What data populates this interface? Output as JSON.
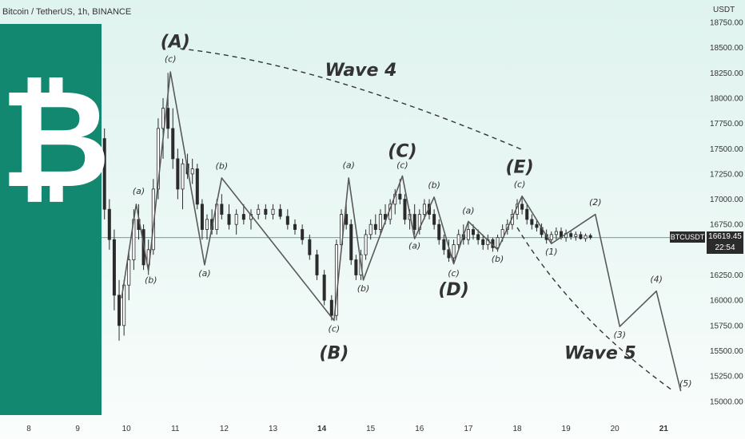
{
  "header": {
    "symbol_title": "Bitcoin / TetherUS, 1h, BINANCE",
    "unit": "USDT"
  },
  "logo": {
    "glyph": "₿",
    "icon": "bitcoin-logo"
  },
  "colors": {
    "panel": "#138870",
    "line": "#5a5a5a",
    "candle": "#2b2b2b",
    "label": "#333333",
    "hline": "#2f8a73"
  },
  "price_tag": {
    "symbol": "BTCUSDT",
    "price": "16619.45",
    "countdown": "22:54"
  },
  "chart_data": {
    "type": "line",
    "title": "",
    "xlabel": "",
    "ylabel": "",
    "ylim": [
      14900,
      18800
    ],
    "grid": false,
    "x_ticks": [
      "8",
      "9",
      "10",
      "11",
      "12",
      "13",
      "14",
      "15",
      "16",
      "17",
      "18",
      "19",
      "20",
      "21"
    ],
    "y_ticks": [
      "18750.00",
      "18500.00",
      "18250.00",
      "18000.00",
      "17750.00",
      "17500.00",
      "17250.00",
      "17000.00",
      "16750.00",
      "16250.00",
      "16000.00",
      "15750.00",
      "15500.00",
      "15250.00",
      "15000.00"
    ],
    "current_price": 16619.45,
    "wave_path": [
      {
        "day": 9.9,
        "y": 16020
      },
      {
        "day": 10.2,
        "y": 16950
      },
      {
        "day": 10.45,
        "y": 16290
      },
      {
        "day": 10.9,
        "y": 18260
      },
      {
        "day": 11.6,
        "y": 16350
      },
      {
        "day": 11.95,
        "y": 17210
      },
      {
        "day": 14.25,
        "y": 15800
      },
      {
        "day": 14.55,
        "y": 17210
      },
      {
        "day": 14.85,
        "y": 16200
      },
      {
        "day": 15.65,
        "y": 17230
      },
      {
        "day": 15.9,
        "y": 16610
      },
      {
        "day": 16.3,
        "y": 17020
      },
      {
        "day": 16.7,
        "y": 16360
      },
      {
        "day": 17.0,
        "y": 16780
      },
      {
        "day": 17.6,
        "y": 16500
      },
      {
        "day": 18.1,
        "y": 17030
      },
      {
        "day": 18.7,
        "y": 16560
      },
      {
        "day": 19.6,
        "y": 16850
      },
      {
        "day": 20.1,
        "y": 15740
      },
      {
        "day": 20.85,
        "y": 16090
      },
      {
        "day": 21.35,
        "y": 15100
      }
    ],
    "wave4_curve": [
      {
        "day": 11.1,
        "y": 18490
      },
      {
        "day": 18.15,
        "y": 17480
      }
    ],
    "wave5_curve": [
      {
        "day": 18.0,
        "y": 16720
      },
      {
        "day": 21.2,
        "y": 15100
      }
    ],
    "labels": [
      {
        "text": "(A)",
        "day": 11.0,
        "y": 18500,
        "size": "big"
      },
      {
        "text": "(c)",
        "day": 10.9,
        "y": 18360,
        "size": "small"
      },
      {
        "text": "(a)",
        "day": 10.25,
        "y": 17050,
        "size": "small"
      },
      {
        "text": "(b)",
        "day": 10.5,
        "y": 16170,
        "size": "small"
      },
      {
        "text": "(b)",
        "day": 11.95,
        "y": 17300,
        "size": "small"
      },
      {
        "text": "(a)",
        "day": 11.6,
        "y": 16240,
        "size": "small"
      },
      {
        "text": "(c)",
        "day": 14.25,
        "y": 15690,
        "size": "small"
      },
      {
        "text": "(B)",
        "day": 14.25,
        "y": 15420,
        "size": "big"
      },
      {
        "text": "(a)",
        "day": 14.55,
        "y": 17310,
        "size": "small"
      },
      {
        "text": "(b)",
        "day": 14.85,
        "y": 16090,
        "size": "small"
      },
      {
        "text": "(C)",
        "day": 15.65,
        "y": 17420,
        "size": "big"
      },
      {
        "text": "(c)",
        "day": 15.65,
        "y": 17310,
        "size": "small"
      },
      {
        "text": "(a)",
        "day": 15.9,
        "y": 16510,
        "size": "small"
      },
      {
        "text": "(b)",
        "day": 16.3,
        "y": 17110,
        "size": "small"
      },
      {
        "text": "(c)",
        "day": 16.7,
        "y": 16240,
        "size": "small"
      },
      {
        "text": "(D)",
        "day": 16.7,
        "y": 16050,
        "size": "big"
      },
      {
        "text": "(a)",
        "day": 17.0,
        "y": 16860,
        "size": "small"
      },
      {
        "text": "(b)",
        "day": 17.6,
        "y": 16380,
        "size": "small"
      },
      {
        "text": "(E)",
        "day": 18.05,
        "y": 17260,
        "size": "big"
      },
      {
        "text": "(c)",
        "day": 18.05,
        "y": 17120,
        "size": "small"
      },
      {
        "text": "(1)",
        "day": 18.7,
        "y": 16450,
        "size": "small"
      },
      {
        "text": "(2)",
        "day": 19.6,
        "y": 16940,
        "size": "small"
      },
      {
        "text": "(3)",
        "day": 20.1,
        "y": 15630,
        "size": "small"
      },
      {
        "text": "(4)",
        "day": 20.85,
        "y": 16180,
        "size": "small"
      },
      {
        "text": "(5)",
        "day": 21.45,
        "y": 15150,
        "size": "small"
      },
      {
        "text": "Wave 4",
        "day": 14.8,
        "y": 18220,
        "size": "wave"
      },
      {
        "text": "Wave 5",
        "day": 19.7,
        "y": 15420,
        "size": "wave"
      }
    ],
    "candles": [
      {
        "day": 9.45,
        "o": 17700,
        "h": 17850,
        "l": 17500,
        "c": 17600
      },
      {
        "day": 9.55,
        "o": 17600,
        "h": 17700,
        "l": 16800,
        "c": 16900
      },
      {
        "day": 9.65,
        "o": 16900,
        "h": 17000,
        "l": 16500,
        "c": 16600
      },
      {
        "day": 9.75,
        "o": 16600,
        "h": 16700,
        "l": 15900,
        "c": 16050
      },
      {
        "day": 9.85,
        "o": 16050,
        "h": 16200,
        "l": 15600,
        "c": 15750
      },
      {
        "day": 9.95,
        "o": 15750,
        "h": 16200,
        "l": 15650,
        "c": 16150
      },
      {
        "day": 10.05,
        "o": 16150,
        "h": 16500,
        "l": 16000,
        "c": 16400
      },
      {
        "day": 10.15,
        "o": 16400,
        "h": 16900,
        "l": 16300,
        "c": 16800
      },
      {
        "day": 10.25,
        "o": 16800,
        "h": 16950,
        "l": 16600,
        "c": 16700
      },
      {
        "day": 10.35,
        "o": 16700,
        "h": 16750,
        "l": 16300,
        "c": 16350
      },
      {
        "day": 10.45,
        "o": 16350,
        "h": 16600,
        "l": 16250,
        "c": 16500
      },
      {
        "day": 10.55,
        "o": 16500,
        "h": 17200,
        "l": 16450,
        "c": 17100
      },
      {
        "day": 10.65,
        "o": 17100,
        "h": 17800,
        "l": 17000,
        "c": 17700
      },
      {
        "day": 10.75,
        "o": 17700,
        "h": 18000,
        "l": 17400,
        "c": 17900
      },
      {
        "day": 10.85,
        "o": 17900,
        "h": 18250,
        "l": 17600,
        "c": 17700
      },
      {
        "day": 10.95,
        "o": 17700,
        "h": 17900,
        "l": 17300,
        "c": 17400
      },
      {
        "day": 11.05,
        "o": 17400,
        "h": 17500,
        "l": 17000,
        "c": 17100
      },
      {
        "day": 11.15,
        "o": 17100,
        "h": 17400,
        "l": 16900,
        "c": 17350
      },
      {
        "day": 11.25,
        "o": 17350,
        "h": 17450,
        "l": 17200,
        "c": 17250
      },
      {
        "day": 11.35,
        "o": 17250,
        "h": 17400,
        "l": 17150,
        "c": 17300
      },
      {
        "day": 11.45,
        "o": 17300,
        "h": 17350,
        "l": 16900,
        "c": 16950
      },
      {
        "day": 11.55,
        "o": 16950,
        "h": 17000,
        "l": 16600,
        "c": 16700
      },
      {
        "day": 11.65,
        "o": 16700,
        "h": 16850,
        "l": 16600,
        "c": 16800
      },
      {
        "day": 11.75,
        "o": 16800,
        "h": 16900,
        "l": 16650,
        "c": 16700
      },
      {
        "day": 11.85,
        "o": 16700,
        "h": 17000,
        "l": 16650,
        "c": 16950
      },
      {
        "day": 11.95,
        "o": 16950,
        "h": 17050,
        "l": 16800,
        "c": 16850
      },
      {
        "day": 12.1,
        "o": 16850,
        "h": 16950,
        "l": 16700,
        "c": 16750
      },
      {
        "day": 12.25,
        "o": 16750,
        "h": 16900,
        "l": 16650,
        "c": 16850
      },
      {
        "day": 12.4,
        "o": 16850,
        "h": 16950,
        "l": 16750,
        "c": 16800
      },
      {
        "day": 12.55,
        "o": 16800,
        "h": 16900,
        "l": 16700,
        "c": 16850
      },
      {
        "day": 12.7,
        "o": 16850,
        "h": 16950,
        "l": 16800,
        "c": 16900
      },
      {
        "day": 12.85,
        "o": 16900,
        "h": 16950,
        "l": 16800,
        "c": 16850
      },
      {
        "day": 13.0,
        "o": 16850,
        "h": 16950,
        "l": 16800,
        "c": 16900
      },
      {
        "day": 13.15,
        "o": 16900,
        "h": 16950,
        "l": 16800,
        "c": 16830
      },
      {
        "day": 13.3,
        "o": 16830,
        "h": 16900,
        "l": 16700,
        "c": 16750
      },
      {
        "day": 13.45,
        "o": 16750,
        "h": 16800,
        "l": 16650,
        "c": 16700
      },
      {
        "day": 13.6,
        "o": 16700,
        "h": 16750,
        "l": 16550,
        "c": 16600
      },
      {
        "day": 13.75,
        "o": 16600,
        "h": 16650,
        "l": 16400,
        "c": 16450
      },
      {
        "day": 13.9,
        "o": 16450,
        "h": 16500,
        "l": 16200,
        "c": 16250
      },
      {
        "day": 14.05,
        "o": 16250,
        "h": 16300,
        "l": 15950,
        "c": 16000
      },
      {
        "day": 14.2,
        "o": 16000,
        "h": 16050,
        "l": 15800,
        "c": 15850
      },
      {
        "day": 14.3,
        "o": 15850,
        "h": 16600,
        "l": 15800,
        "c": 16550
      },
      {
        "day": 14.4,
        "o": 16550,
        "h": 16900,
        "l": 16500,
        "c": 16850
      },
      {
        "day": 14.5,
        "o": 16850,
        "h": 16950,
        "l": 16700,
        "c": 16750
      },
      {
        "day": 14.6,
        "o": 16750,
        "h": 16800,
        "l": 16350,
        "c": 16400
      },
      {
        "day": 14.7,
        "o": 16400,
        "h": 16450,
        "l": 16200,
        "c": 16250
      },
      {
        "day": 14.8,
        "o": 16250,
        "h": 16500,
        "l": 16200,
        "c": 16450
      },
      {
        "day": 14.9,
        "o": 16450,
        "h": 16700,
        "l": 16400,
        "c": 16650
      },
      {
        "day": 15.0,
        "o": 16650,
        "h": 16800,
        "l": 16600,
        "c": 16750
      },
      {
        "day": 15.1,
        "o": 16750,
        "h": 16850,
        "l": 16650,
        "c": 16700
      },
      {
        "day": 15.2,
        "o": 16700,
        "h": 16900,
        "l": 16650,
        "c": 16850
      },
      {
        "day": 15.3,
        "o": 16850,
        "h": 16950,
        "l": 16750,
        "c": 16800
      },
      {
        "day": 15.4,
        "o": 16800,
        "h": 17000,
        "l": 16750,
        "c": 16950
      },
      {
        "day": 15.5,
        "o": 16950,
        "h": 17100,
        "l": 16850,
        "c": 17050
      },
      {
        "day": 15.6,
        "o": 17050,
        "h": 17200,
        "l": 16950,
        "c": 17000
      },
      {
        "day": 15.7,
        "o": 17000,
        "h": 17050,
        "l": 16750,
        "c": 16800
      },
      {
        "day": 15.8,
        "o": 16800,
        "h": 16900,
        "l": 16700,
        "c": 16850
      },
      {
        "day": 15.9,
        "o": 16850,
        "h": 16950,
        "l": 16650,
        "c": 16700
      },
      {
        "day": 16.0,
        "o": 16700,
        "h": 16900,
        "l": 16650,
        "c": 16850
      },
      {
        "day": 16.1,
        "o": 16850,
        "h": 17000,
        "l": 16800,
        "c": 16950
      },
      {
        "day": 16.2,
        "o": 16950,
        "h": 17000,
        "l": 16800,
        "c": 16850
      },
      {
        "day": 16.3,
        "o": 16850,
        "h": 16900,
        "l": 16700,
        "c": 16750
      },
      {
        "day": 16.4,
        "o": 16750,
        "h": 16800,
        "l": 16550,
        "c": 16600
      },
      {
        "day": 16.5,
        "o": 16600,
        "h": 16650,
        "l": 16450,
        "c": 16500
      },
      {
        "day": 16.6,
        "o": 16500,
        "h": 16600,
        "l": 16380,
        "c": 16420
      },
      {
        "day": 16.7,
        "o": 16420,
        "h": 16600,
        "l": 16380,
        "c": 16550
      },
      {
        "day": 16.8,
        "o": 16550,
        "h": 16700,
        "l": 16500,
        "c": 16650
      },
      {
        "day": 16.9,
        "o": 16650,
        "h": 16750,
        "l": 16550,
        "c": 16600
      },
      {
        "day": 17.0,
        "o": 16600,
        "h": 16780,
        "l": 16550,
        "c": 16700
      },
      {
        "day": 17.1,
        "o": 16700,
        "h": 16750,
        "l": 16600,
        "c": 16650
      },
      {
        "day": 17.2,
        "o": 16650,
        "h": 16700,
        "l": 16550,
        "c": 16600
      },
      {
        "day": 17.3,
        "o": 16600,
        "h": 16650,
        "l": 16500,
        "c": 16550
      },
      {
        "day": 17.4,
        "o": 16550,
        "h": 16650,
        "l": 16500,
        "c": 16600
      },
      {
        "day": 17.5,
        "o": 16600,
        "h": 16620,
        "l": 16480,
        "c": 16520
      },
      {
        "day": 17.6,
        "o": 16520,
        "h": 16650,
        "l": 16480,
        "c": 16620
      },
      {
        "day": 17.7,
        "o": 16620,
        "h": 16750,
        "l": 16580,
        "c": 16700
      },
      {
        "day": 17.8,
        "o": 16700,
        "h": 16800,
        "l": 16650,
        "c": 16750
      },
      {
        "day": 17.9,
        "o": 16750,
        "h": 16900,
        "l": 16700,
        "c": 16850
      },
      {
        "day": 18.0,
        "o": 16850,
        "h": 17000,
        "l": 16800,
        "c": 16950
      },
      {
        "day": 18.1,
        "o": 16950,
        "h": 17030,
        "l": 16850,
        "c": 16900
      },
      {
        "day": 18.2,
        "o": 16900,
        "h": 16950,
        "l": 16750,
        "c": 16800
      },
      {
        "day": 18.3,
        "o": 16800,
        "h": 16850,
        "l": 16700,
        "c": 16750
      },
      {
        "day": 18.4,
        "o": 16750,
        "h": 16800,
        "l": 16680,
        "c": 16720
      },
      {
        "day": 18.5,
        "o": 16720,
        "h": 16760,
        "l": 16620,
        "c": 16650
      },
      {
        "day": 18.6,
        "o": 16650,
        "h": 16700,
        "l": 16560,
        "c": 16600
      },
      {
        "day": 18.7,
        "o": 16600,
        "h": 16680,
        "l": 16560,
        "c": 16650
      },
      {
        "day": 18.8,
        "o": 16650,
        "h": 16720,
        "l": 16600,
        "c": 16680
      },
      {
        "day": 18.9,
        "o": 16680,
        "h": 16720,
        "l": 16600,
        "c": 16620
      },
      {
        "day": 19.0,
        "o": 16620,
        "h": 16700,
        "l": 16580,
        "c": 16660
      },
      {
        "day": 19.1,
        "o": 16660,
        "h": 16690,
        "l": 16600,
        "c": 16630
      },
      {
        "day": 19.2,
        "o": 16630,
        "h": 16680,
        "l": 16590,
        "c": 16650
      },
      {
        "day": 19.3,
        "o": 16650,
        "h": 16680,
        "l": 16600,
        "c": 16610
      },
      {
        "day": 19.4,
        "o": 16610,
        "h": 16660,
        "l": 16580,
        "c": 16640
      },
      {
        "day": 19.5,
        "o": 16640,
        "h": 16660,
        "l": 16600,
        "c": 16620
      }
    ]
  }
}
